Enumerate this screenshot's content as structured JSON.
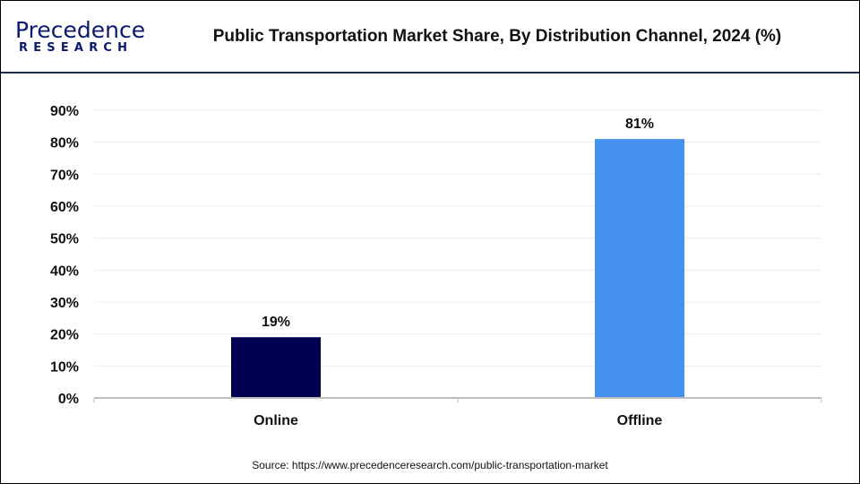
{
  "logo": {
    "line1": "Precedence",
    "line2": "RESEARCH"
  },
  "chart_data": {
    "type": "bar",
    "title": "Public Transportation Market Share, By Distribution Channel, 2024 (%)",
    "categories": [
      "Online",
      "Offline"
    ],
    "values": [
      19,
      81
    ],
    "data_labels": [
      "19%",
      "81%"
    ],
    "colors": [
      "#000050",
      "#4591ee"
    ],
    "ylim": [
      0,
      90
    ],
    "yticks": [
      "0%",
      "10%",
      "20%",
      "30%",
      "40%",
      "50%",
      "60%",
      "70%",
      "80%",
      "90%"
    ],
    "grid": true,
    "xlabel": "",
    "ylabel": ""
  },
  "source": "Source: https://www.precedenceresearch.com/public-transportation-market"
}
